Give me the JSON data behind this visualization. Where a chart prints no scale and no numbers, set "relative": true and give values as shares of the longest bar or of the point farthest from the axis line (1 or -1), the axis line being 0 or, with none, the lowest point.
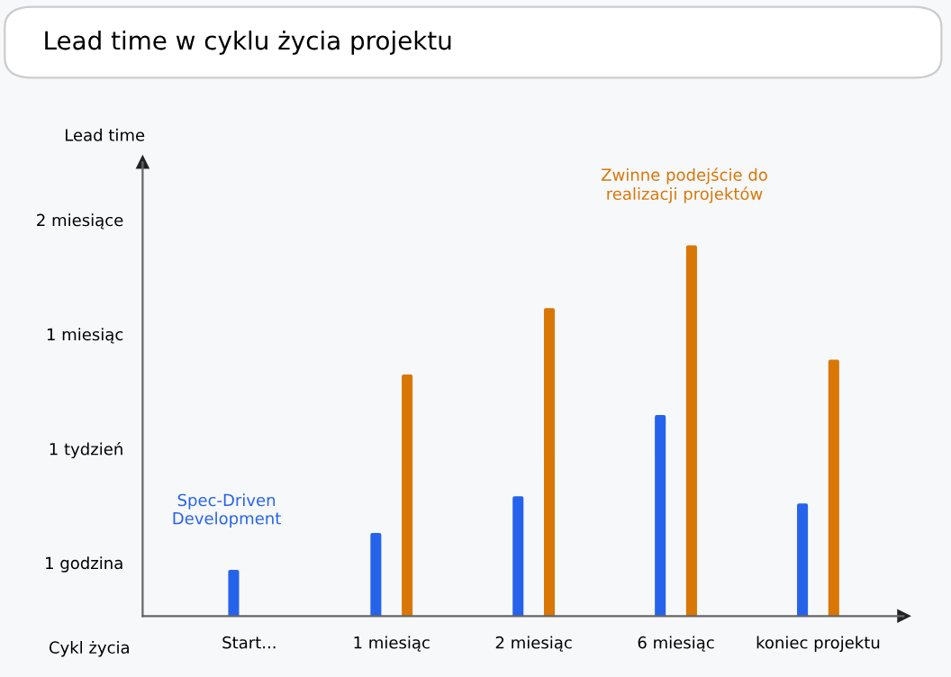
{
  "chart_data": {
    "type": "bar",
    "title": "Lead time w cyklu życia projektu",
    "xlabel": "Cykl życia",
    "relative": true,
    "categories": [
      "Start...",
      "1 miesiąc",
      "2 miesiąc",
      "6 miesiąc",
      "koniec projektu"
    ],
    "series": [
      {
        "name": "Spec-Driven Development",
        "color": "#2563eb",
        "values": [
          0.12,
          0.22,
          0.32,
          0.54,
          0.3
        ]
      },
      {
        "name": "Zwinne podejście do realizacji projektów",
        "color": "#d97706",
        "values": [
          null,
          0.65,
          0.83,
          1,
          0.69
        ]
      }
    ],
    "annotations": [
      "1 godzina",
      "1 tydzień",
      "1 miesiąc",
      "2 miesiące",
      "Lead time"
    ],
    "grid": false,
    "legend": false
  }
}
